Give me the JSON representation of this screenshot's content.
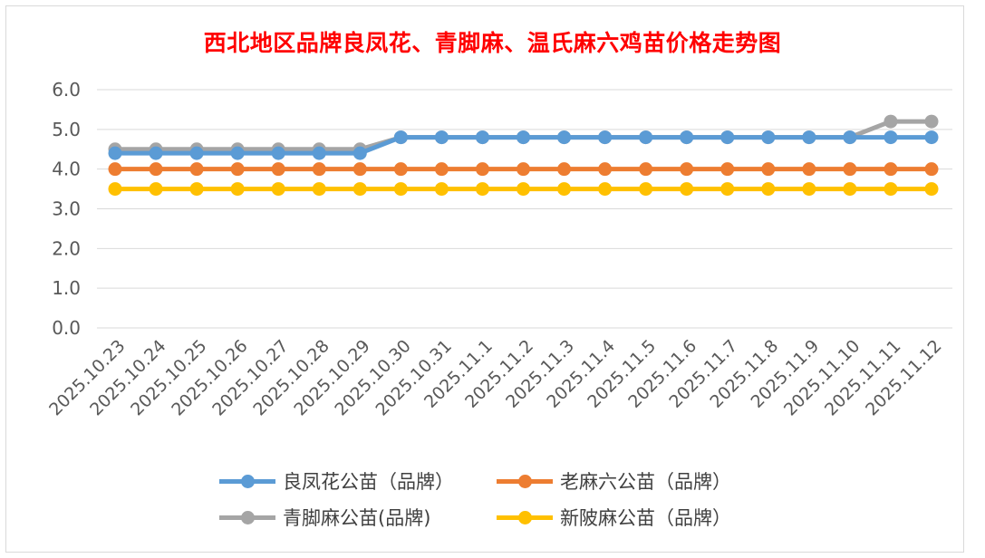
{
  "chart_data": {
    "type": "line",
    "title": "西北地区品牌良凤花、青脚麻、温氏麻六鸡苗价格走势图",
    "categories": [
      "2025.10.23",
      "2025.10.24",
      "2025.10.25",
      "2025.10.26",
      "2025.10.27",
      "2025.10.28",
      "2025.10.29",
      "2025.10.30",
      "2025.10.31",
      "2025.11.1",
      "2025.11.2",
      "2025.11.3",
      "2025.11.4",
      "2025.11.5",
      "2025.11.6",
      "2025.11.7",
      "2025.11.8",
      "2025.11.9",
      "2025.11.10",
      "2025.11.11",
      "2025.11.12"
    ],
    "y_ticks": [
      "6.0",
      "5.0",
      "4.0",
      "3.0",
      "2.0",
      "1.0",
      "0.0"
    ],
    "ylim": [
      0,
      6
    ],
    "grid": true,
    "legend_position": "bottom",
    "series": [
      {
        "name": "良凤花公苗（品牌）",
        "color": "#5b9bd5",
        "values": [
          4.4,
          4.4,
          4.4,
          4.4,
          4.4,
          4.4,
          4.4,
          4.8,
          4.8,
          4.8,
          4.8,
          4.8,
          4.8,
          4.8,
          4.8,
          4.8,
          4.8,
          4.8,
          4.8,
          4.8,
          4.8
        ]
      },
      {
        "name": "老麻六公苗（品牌）",
        "color": "#ed7d31",
        "values": [
          4.0,
          4.0,
          4.0,
          4.0,
          4.0,
          4.0,
          4.0,
          4.0,
          4.0,
          4.0,
          4.0,
          4.0,
          4.0,
          4.0,
          4.0,
          4.0,
          4.0,
          4.0,
          4.0,
          4.0,
          4.0
        ]
      },
      {
        "name": "青脚麻公苗(品牌)",
        "color": "#a5a5a5",
        "values": [
          4.5,
          4.5,
          4.5,
          4.5,
          4.5,
          4.5,
          4.5,
          4.8,
          4.8,
          4.8,
          4.8,
          4.8,
          4.8,
          4.8,
          4.8,
          4.8,
          4.8,
          4.8,
          4.8,
          5.2,
          5.2
        ]
      },
      {
        "name": "新陂麻公苗（品牌）",
        "color": "#ffc000",
        "values": [
          3.5,
          3.5,
          3.5,
          3.5,
          3.5,
          3.5,
          3.5,
          3.5,
          3.5,
          3.5,
          3.5,
          3.5,
          3.5,
          3.5,
          3.5,
          3.5,
          3.5,
          3.5,
          3.5,
          3.5,
          3.5
        ]
      }
    ]
  }
}
